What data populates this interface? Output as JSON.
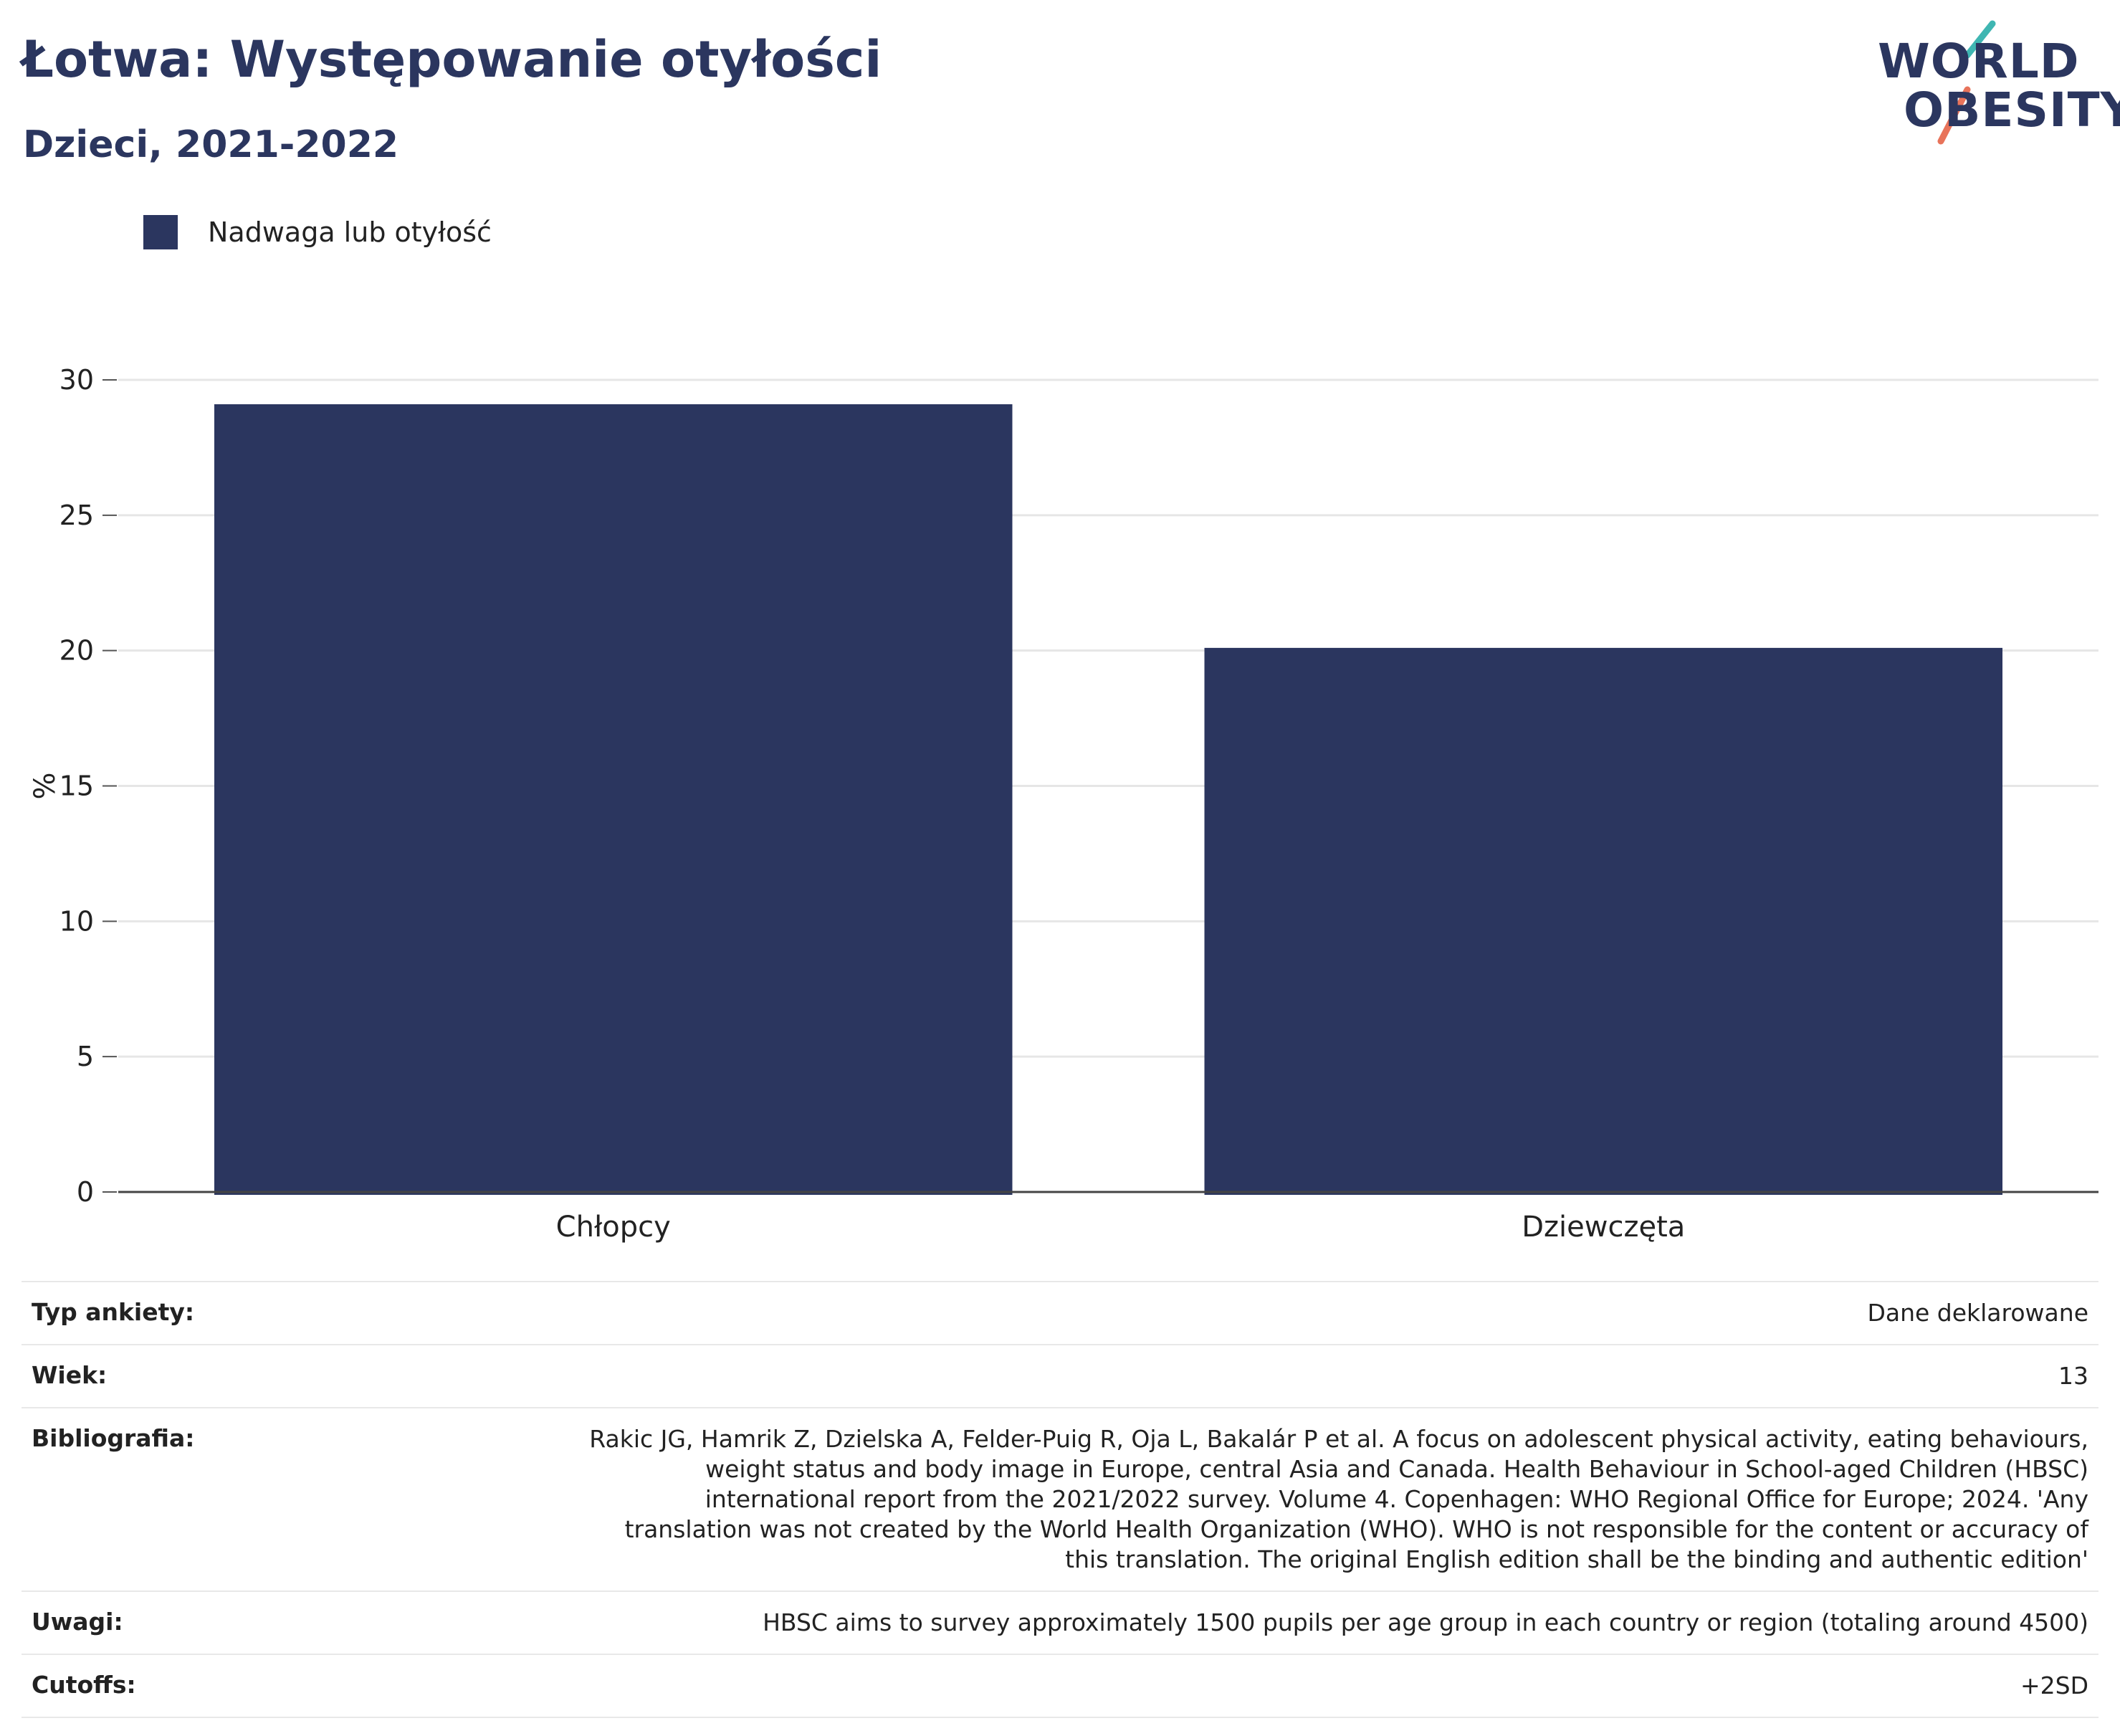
{
  "header": {
    "title": "Łotwa: Występowanie otyłości",
    "subtitle": "Dzieci, 2021-2022"
  },
  "logo": {
    "line1": "WORLD",
    "line2": "OBESITY",
    "accent_teal": "#3fb6b2",
    "accent_coral": "#e8735a"
  },
  "legend": {
    "items": [
      {
        "label": "Nadwaga lub otyłość",
        "color": "#2b365f"
      }
    ]
  },
  "chart_data": {
    "type": "bar",
    "categories": [
      "Chłopcy",
      "Dziewczęta"
    ],
    "series": [
      {
        "name": "Nadwaga lub otyłość",
        "values": [
          29.1,
          20.1
        ],
        "color": "#2b365f"
      }
    ],
    "ylabel": "%",
    "ylim": [
      0,
      30
    ],
    "yticks": [
      0,
      5,
      10,
      15,
      20,
      25,
      30
    ],
    "grid": true,
    "legend_position": "top-left"
  },
  "metadata": {
    "rows": [
      {
        "label": "Typ ankiety:",
        "value": "Dane deklarowane"
      },
      {
        "label": "Wiek:",
        "value": "13"
      },
      {
        "label": "Bibliografia:",
        "value": "Rakic JG, Hamrik Z, Dzielska A, Felder-Puig R, Oja L, Bakalár P et al. A focus on adolescent physical activity, eating behaviours, weight status and body image in Europe, central Asia and Canada. Health Behaviour in School-aged Children (HBSC) international report from the 2021/2022 survey. Volume 4. Copenhagen: WHO Regional Office for Europe; 2024. 'Any translation was not created by the World Health Organization (WHO). WHO is not responsible for the content or accuracy of this translation. The original English edition shall be the binding and authentic edition'"
      },
      {
        "label": "Uwagi:",
        "value": "HBSC aims to survey approximately 1500 pupils per age group in each country or region (totaling around 4500)"
      },
      {
        "label": "Cutoffs:",
        "value": "+2SD"
      }
    ]
  }
}
